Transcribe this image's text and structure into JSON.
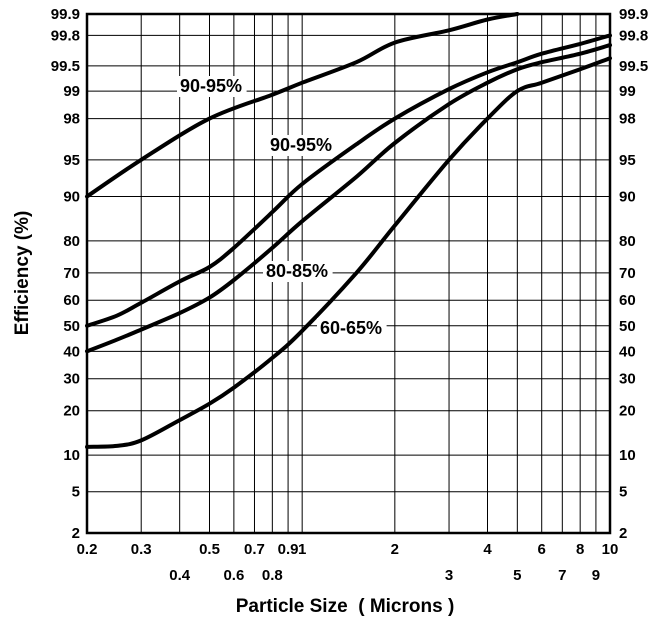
{
  "chart_data": {
    "type": "line",
    "title": "",
    "xlabel": "Particle Size  ( Microns )",
    "ylabel": "Efficiency (%)",
    "x_scale": "log",
    "y_scale": "probability",
    "xlim": [
      0.2,
      10
    ],
    "ylim": [
      2,
      99.9
    ],
    "grid": true,
    "legend": "none",
    "x_ticks": [
      "0.2",
      "0.3",
      "0.4",
      "0.5",
      "0.6",
      "0.7",
      "0.8",
      "0.9",
      "1",
      "2",
      "3",
      "4",
      "5",
      "6",
      "7",
      "8",
      "9",
      "10"
    ],
    "y_ticks_left": [
      "2",
      "5",
      "10",
      "20",
      "30",
      "40",
      "50",
      "60",
      "70",
      "80",
      "90",
      "95",
      "98",
      "99",
      "99.5",
      "99.8",
      "99.9"
    ],
    "y_ticks_right": [
      "2",
      "5",
      "10",
      "20",
      "30",
      "40",
      "50",
      "60",
      "70",
      "80",
      "90",
      "95",
      "98",
      "99",
      "99.5",
      "99.8",
      "99.9"
    ],
    "series": [
      {
        "name": "90-95%",
        "x": [
          0.2,
          0.3,
          0.5,
          0.8,
          1,
          1.5,
          2,
          3,
          4,
          5
        ],
        "y": [
          90,
          95,
          98,
          98.9,
          99.2,
          99.55,
          99.75,
          99.83,
          99.88,
          99.9
        ]
      },
      {
        "name": "90-95%",
        "x": [
          0.2,
          0.25,
          0.3,
          0.4,
          0.5,
          0.6,
          0.8,
          1,
          1.5,
          2,
          3,
          4,
          5,
          6,
          8,
          10
        ],
        "y": [
          50,
          54,
          59,
          67,
          72,
          78,
          87,
          92,
          96.4,
          98,
          99.05,
          99.4,
          99.55,
          99.65,
          99.74,
          99.8
        ]
      },
      {
        "name": "80-85%",
        "x": [
          0.2,
          0.25,
          0.3,
          0.4,
          0.5,
          0.6,
          0.8,
          1,
          1.5,
          2,
          3,
          4,
          5,
          6,
          8,
          10
        ],
        "y": [
          40,
          44.5,
          48.5,
          55,
          61,
          67.5,
          78,
          85,
          93,
          96.5,
          98.6,
          99.2,
          99.45,
          99.55,
          99.65,
          99.73
        ]
      },
      {
        "name": "60-65%",
        "x": [
          0.2,
          0.25,
          0.3,
          0.4,
          0.5,
          0.6,
          0.8,
          1,
          1.5,
          2,
          3,
          4,
          5,
          6,
          8,
          10
        ],
        "y": [
          11.5,
          11.7,
          12.8,
          17.5,
          22,
          27,
          37.5,
          48,
          70,
          84,
          95,
          98,
          99,
          99.2,
          99.45,
          99.6
        ]
      }
    ],
    "annotations": [
      "90-95%",
      "90-95%",
      "80-85%",
      "60-65%"
    ]
  }
}
